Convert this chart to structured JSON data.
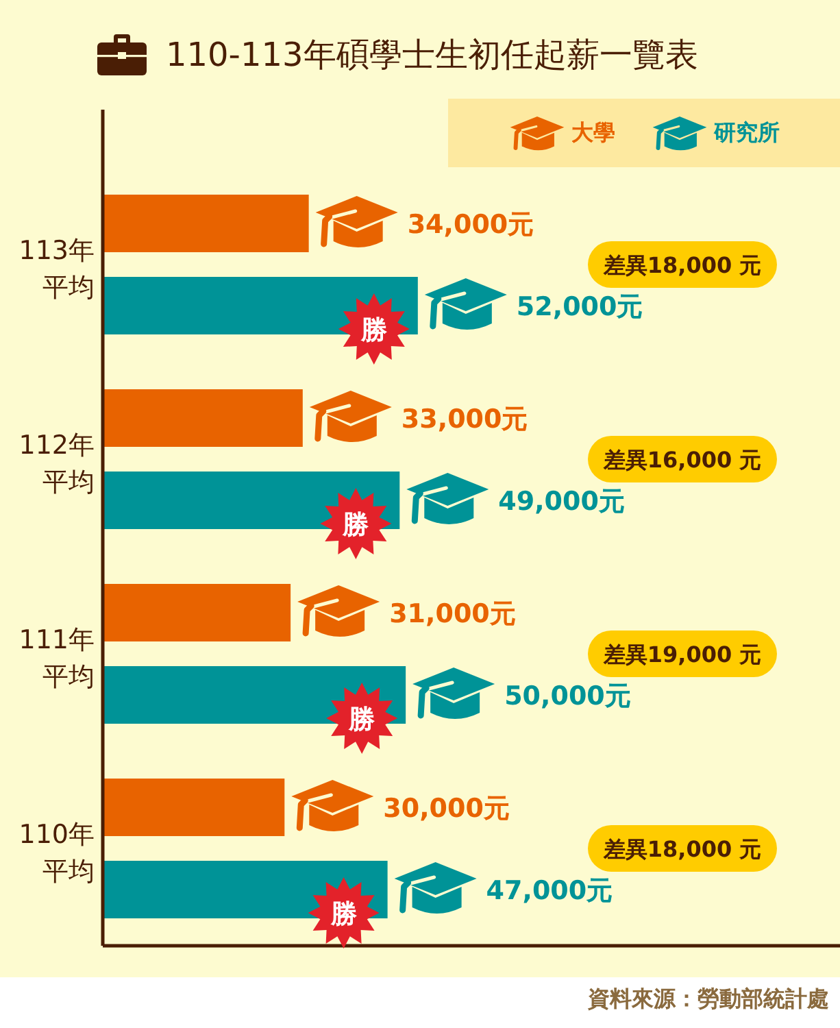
{
  "chart_data": {
    "type": "bar",
    "orientation": "horizontal",
    "title": "110-113年碩學士生初任起薪一覽表",
    "categories": [
      "113年平均",
      "112年平均",
      "111年平均",
      "110年平均"
    ],
    "series": [
      {
        "name": "大學",
        "color": "#e86300",
        "values": [
          34000,
          33000,
          31000,
          30000
        ],
        "value_labels": [
          "34,000元",
          "33,000元",
          "31,000元",
          "30,000元"
        ]
      },
      {
        "name": "研究所",
        "color": "#009397",
        "values": [
          52000,
          49000,
          50000,
          47000
        ],
        "value_labels": [
          "52,000元",
          "49,000元",
          "50,000元",
          "47,000元"
        ]
      }
    ],
    "annotations": [
      "勝",
      "勝",
      "勝",
      "勝",
      "差異18,000 元",
      "差異16,000 元",
      "差異19,000 元",
      "差異18,000 元",
      "資料來源：勞動部統計處"
    ],
    "legend": "top right",
    "tick_labels": "y"
  }
}
